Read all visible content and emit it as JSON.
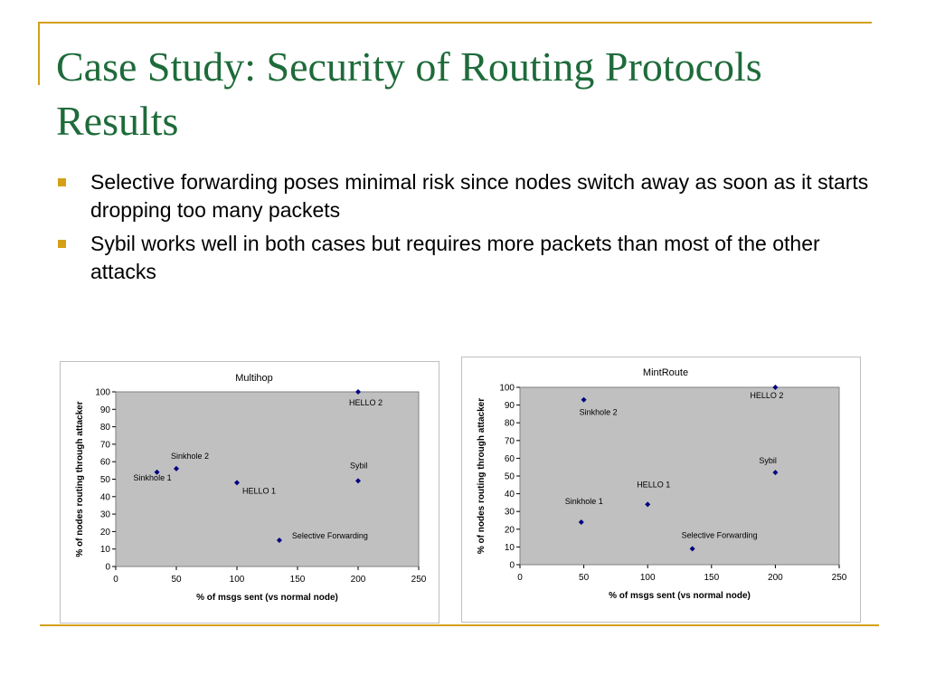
{
  "slide": {
    "title": "Case Study: Security of Routing Protocols Results",
    "bullets": [
      "Selective forwarding poses minimal risk since nodes switch away as soon as it starts dropping too many packets",
      "Sybil works well in both cases but requires more packets than most of the other attacks"
    ]
  },
  "colors": {
    "title": "#1E6B3A",
    "accent": "#D4A017",
    "plot_area": "#C0C0C0",
    "marker": "#000080"
  },
  "chart_data": [
    {
      "type": "scatter",
      "title": "Multihop",
      "xlabel": "% of msgs sent (vs normal node)",
      "ylabel": "% of nodes routing through attacker",
      "xlim": [
        0,
        250
      ],
      "ylim": [
        0,
        100
      ],
      "xticks": [
        0,
        50,
        100,
        150,
        200,
        250
      ],
      "yticks": [
        0,
        10,
        20,
        30,
        40,
        50,
        60,
        70,
        80,
        90,
        100
      ],
      "grid": false,
      "legend": "none",
      "points": [
        {
          "label": "Sinkhole 1",
          "x": 34,
          "y": 54
        },
        {
          "label": "Sinkhole 2",
          "x": 50,
          "y": 56
        },
        {
          "label": "HELLO 1",
          "x": 100,
          "y": 48
        },
        {
          "label": "Selective Forwarding",
          "x": 135,
          "y": 15
        },
        {
          "label": "Sybil",
          "x": 200,
          "y": 49
        },
        {
          "label": "HELLO 2",
          "x": 200,
          "y": 100
        }
      ]
    },
    {
      "type": "scatter",
      "title": "MintRoute",
      "xlabel": "% of msgs sent (vs normal node)",
      "ylabel": "% of nodes routing through attacker",
      "xlim": [
        0,
        250
      ],
      "ylim": [
        0,
        100
      ],
      "xticks": [
        0,
        50,
        100,
        150,
        200,
        250
      ],
      "yticks": [
        0,
        10,
        20,
        30,
        40,
        50,
        60,
        70,
        80,
        90,
        100
      ],
      "grid": false,
      "legend": "none",
      "points": [
        {
          "label": "Sinkhole 2",
          "x": 50,
          "y": 93
        },
        {
          "label": "Sinkhole 1",
          "x": 48,
          "y": 24
        },
        {
          "label": "HELLO 1",
          "x": 100,
          "y": 34
        },
        {
          "label": "Selective Forwarding",
          "x": 135,
          "y": 9
        },
        {
          "label": "Sybil",
          "x": 200,
          "y": 52
        },
        {
          "label": "HELLO 2",
          "x": 200,
          "y": 100
        }
      ]
    }
  ]
}
